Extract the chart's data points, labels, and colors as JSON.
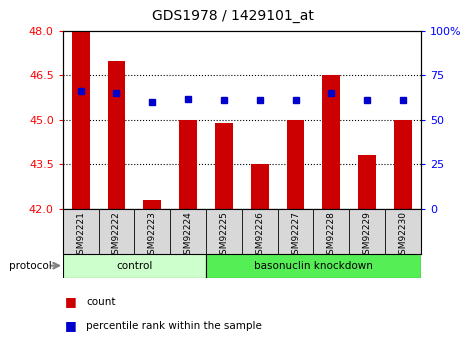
{
  "title": "GDS1978 / 1429101_at",
  "samples": [
    "GSM92221",
    "GSM92222",
    "GSM92223",
    "GSM92224",
    "GSM92225",
    "GSM92226",
    "GSM92227",
    "GSM92228",
    "GSM92229",
    "GSM92230"
  ],
  "counts": [
    48.0,
    47.0,
    42.3,
    45.0,
    44.9,
    43.5,
    45.0,
    46.5,
    43.8,
    45.0
  ],
  "percentiles": [
    66,
    65,
    60,
    62,
    61,
    61,
    61,
    65,
    61,
    61
  ],
  "ylim_left": [
    42,
    48
  ],
  "ylim_right": [
    0,
    100
  ],
  "yticks_left": [
    42,
    43.5,
    45,
    46.5,
    48
  ],
  "yticks_right": [
    0,
    25,
    50,
    75,
    100
  ],
  "ytick_labels_right": [
    "0",
    "25",
    "50",
    "75",
    "100%"
  ],
  "groups": [
    {
      "label": "control",
      "indices": [
        0,
        1,
        2,
        3
      ],
      "color": "#ccffcc"
    },
    {
      "label": "basonuclin knockdown",
      "indices": [
        4,
        5,
        6,
        7,
        8,
        9
      ],
      "color": "#55ee55"
    }
  ],
  "bar_color": "#cc0000",
  "dot_color": "#0000cc",
  "bar_width": 0.5,
  "bg_color": "#d8d8d8",
  "protocol_label": "protocol",
  "legend_items": [
    {
      "label": "count",
      "color": "#cc0000"
    },
    {
      "label": "percentile rank within the sample",
      "color": "#0000cc"
    }
  ]
}
